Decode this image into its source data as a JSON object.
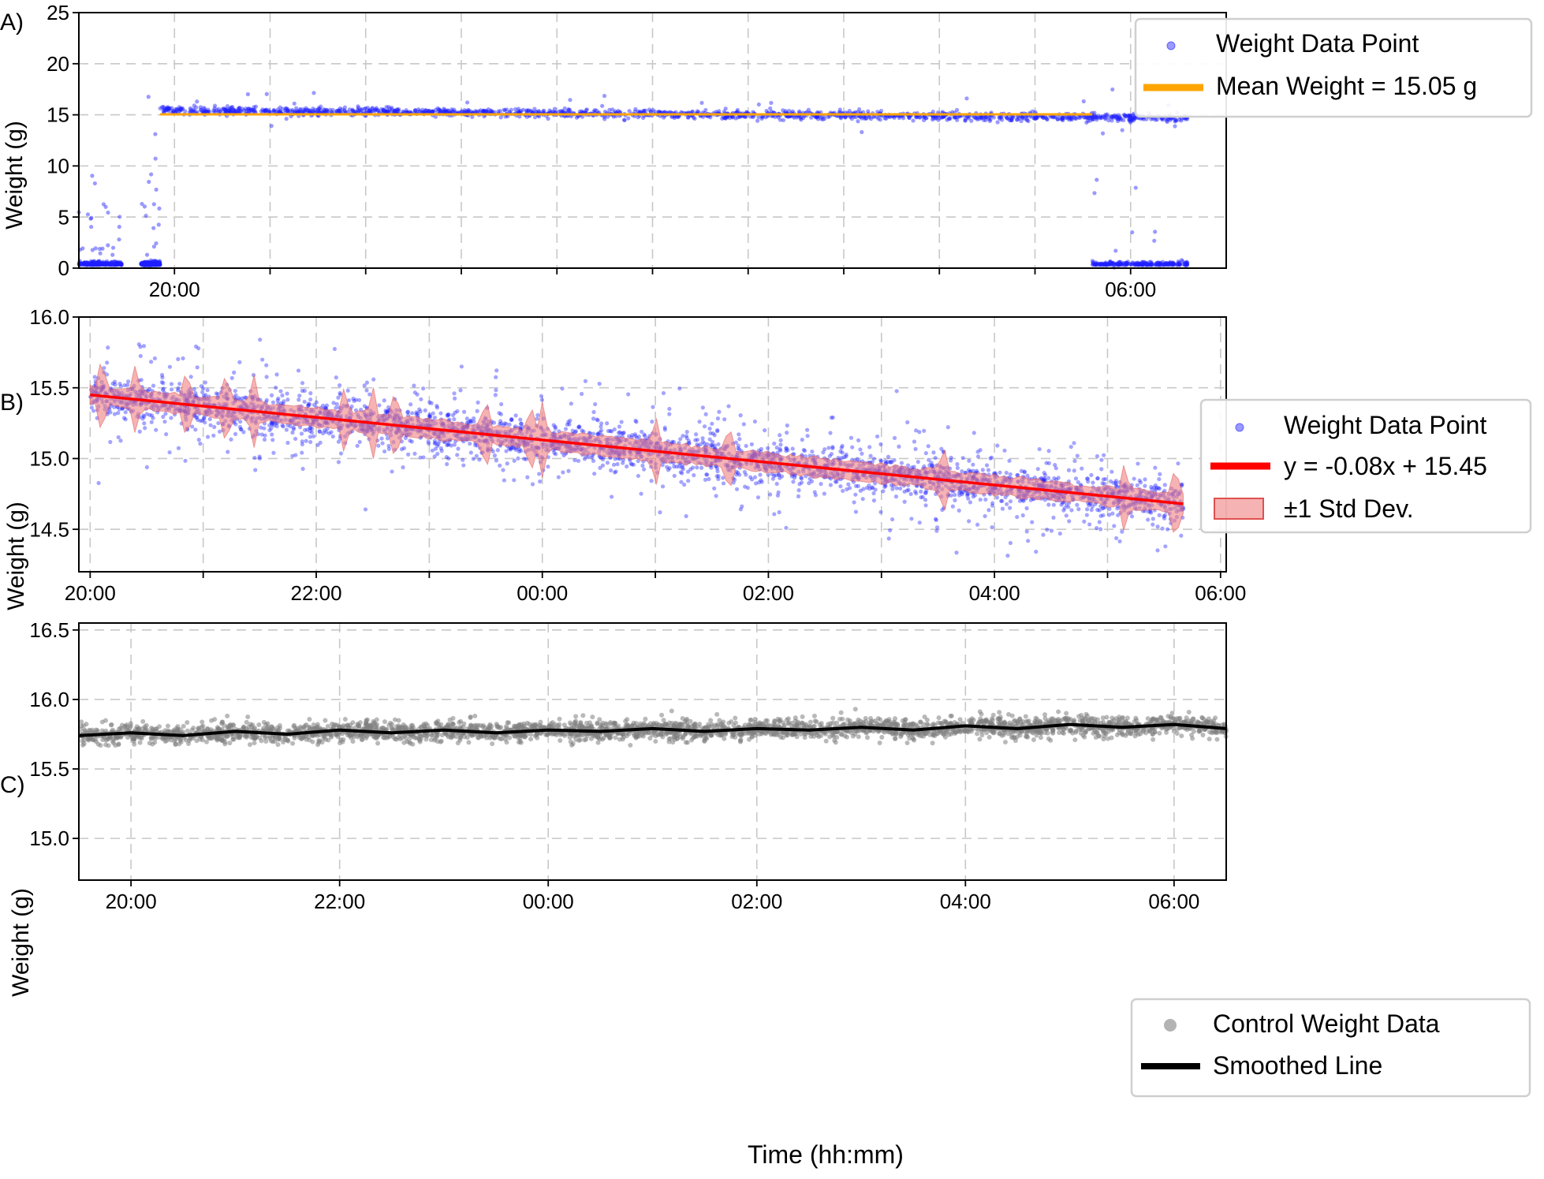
{
  "figure": {
    "panel_labels": [
      "A)",
      "B)",
      "C)"
    ],
    "colors": {
      "points_blue": "#1f1fff",
      "mean_orange": "#ffa500",
      "fit_red": "#ff0000",
      "std_fill": "#f08080",
      "control_grey": "#808080",
      "smoothed_black": "#000000"
    }
  },
  "chart_data": [
    {
      "type": "scatter",
      "panel": "A)",
      "ylabel": "Weight (g)",
      "xlabel": "",
      "x_unit": "hours relative to 00:00",
      "xlim": [
        -5.0,
        7.0
      ],
      "ylim": [
        0,
        25
      ],
      "yticks": [
        0,
        5,
        10,
        15,
        20,
        25
      ],
      "xtick_labels": [
        {
          "x": -4,
          "label": "20:00"
        },
        {
          "x": 6,
          "label": "06:00"
        }
      ],
      "xticks_minor": [
        -3,
        -2,
        -1,
        0,
        1,
        2,
        3,
        4,
        5
      ],
      "grid": true,
      "legend_position": "top-right",
      "legend": [
        "Weight Data Point",
        "Mean Weight = 15.05 g"
      ],
      "series": [
        {
          "name": "Weight Data Point",
          "color": "#1f1fff",
          "segments": [
            {
              "x_start": -5.0,
              "x_end": -4.55,
              "level": 0.3
            },
            {
              "x_start": -4.35,
              "x_end": -4.15,
              "level": 0.3
            },
            {
              "x_start": -4.15,
              "x_end": 6.6,
              "level_start": 15.45,
              "level_end": 14.68
            },
            {
              "x_start": 5.6,
              "x_end": 6.6,
              "level": 0.3
            }
          ]
        },
        {
          "name": "Mean Weight = 15.05 g",
          "color": "#ffa500",
          "x": [
            -4.15,
            5.6
          ],
          "y": [
            15.05,
            15.05
          ]
        }
      ]
    },
    {
      "type": "scatter",
      "panel": "B)",
      "ylabel": "Weight (g)",
      "xlabel": "",
      "x_unit": "hours relative to 00:00",
      "xlim": [
        -4.1,
        6.05
      ],
      "ylim": [
        14.2,
        16.0
      ],
      "yticks": [
        14.5,
        15.0,
        15.5,
        16.0
      ],
      "xtick_labels": [
        {
          "x": -4,
          "label": "20:00"
        },
        {
          "x": -2,
          "label": "22:00"
        },
        {
          "x": 0,
          "label": "00:00"
        },
        {
          "x": 2,
          "label": "02:00"
        },
        {
          "x": 4,
          "label": "04:00"
        },
        {
          "x": 6,
          "label": "06:00"
        }
      ],
      "xticks_minor": [
        -3,
        -1,
        1,
        3,
        5
      ],
      "grid": true,
      "legend_position": "top-right",
      "legend": [
        "Weight Data Point",
        "y = -0.08x + 15.45",
        "±1 Std Dev."
      ],
      "fit": {
        "slope": -0.08,
        "intercept": 15.45,
        "x_range": [
          -4.0,
          5.67
        ],
        "y_range": [
          15.45,
          14.68
        ]
      },
      "spikes_x": [
        -3.9,
        -3.6,
        -3.15,
        -2.8,
        -2.55,
        -1.75,
        -1.5,
        -1.3,
        -0.5,
        -0.1,
        0.0,
        1.0,
        1.65,
        3.55,
        5.15,
        5.6
      ],
      "series": [
        {
          "name": "Weight Data Point",
          "color": "#1f1fff"
        },
        {
          "name": "y = -0.08x + 15.45",
          "color": "#ff0000"
        },
        {
          "name": "±1 Std Dev.",
          "color": "#f08080"
        }
      ]
    },
    {
      "type": "scatter",
      "panel": "C)",
      "ylabel": "Weight (g)",
      "xlabel": "Time (hh:mm)",
      "x_unit": "hours relative to 00:00",
      "xlim": [
        -4.5,
        6.5
      ],
      "ylim": [
        14.7,
        16.55
      ],
      "yticks": [
        15.0,
        15.5,
        16.0,
        16.5
      ],
      "xtick_labels": [
        {
          "x": -4,
          "label": "20:00"
        },
        {
          "x": -2,
          "label": "22:00"
        },
        {
          "x": 0,
          "label": "00:00"
        },
        {
          "x": 2,
          "label": "02:00"
        },
        {
          "x": 4,
          "label": "04:00"
        },
        {
          "x": 6,
          "label": "06:00"
        }
      ],
      "grid": true,
      "legend_position": "bottom-right",
      "legend": [
        "Control Weight Data",
        "Smoothed Line"
      ],
      "series": [
        {
          "name": "Control Weight Data",
          "color": "#808080"
        },
        {
          "name": "Smoothed Line",
          "color": "#000000",
          "x": [
            -4.5,
            -4.0,
            -3.5,
            -3.0,
            -2.5,
            -2.0,
            -1.5,
            -1.0,
            -0.5,
            0.0,
            0.5,
            1.0,
            1.5,
            2.0,
            2.5,
            3.0,
            3.5,
            4.0,
            4.5,
            5.0,
            5.5,
            6.0,
            6.5
          ],
          "y": [
            15.74,
            15.76,
            15.74,
            15.77,
            15.75,
            15.78,
            15.76,
            15.78,
            15.76,
            15.78,
            15.77,
            15.79,
            15.77,
            15.79,
            15.78,
            15.8,
            15.78,
            15.81,
            15.79,
            15.82,
            15.8,
            15.82,
            15.79
          ]
        }
      ]
    }
  ]
}
